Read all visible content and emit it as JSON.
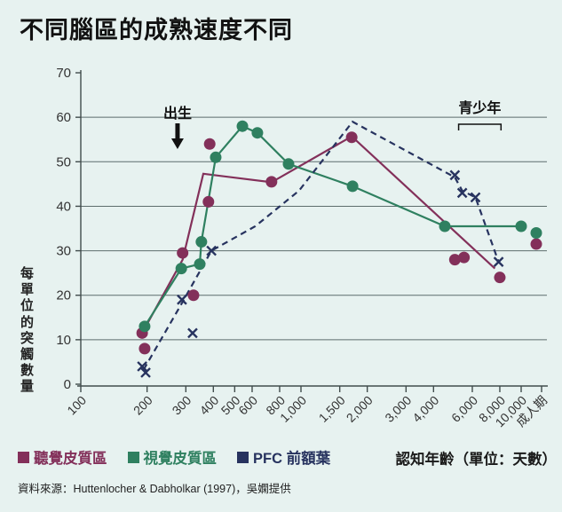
{
  "title": "不同腦區的成熟速度不同",
  "source": "資料來源：Huttenlocher & Dabholkar (1997)，吳嫻提供",
  "colors": {
    "background": "#e7f2f0",
    "grid": "#5d6d6d",
    "axis": "#414c4c",
    "text": "#1a1a1a",
    "annotation": "#111111"
  },
  "chart_data": {
    "type": "line",
    "title": "不同腦區的成熟速度不同",
    "x_axis": {
      "label": "認知年齡（單位：天數）",
      "scale": "log",
      "ticks": [
        {
          "label": "100",
          "day": 100
        },
        {
          "label": "200",
          "day": 200
        },
        {
          "label": "300",
          "day": 300
        },
        {
          "label": "400",
          "day": 400
        },
        {
          "label": "500",
          "day": 500
        },
        {
          "label": "600",
          "day": 600
        },
        {
          "label": "800",
          "day": 800
        },
        {
          "label": "1,000",
          "day": 1000
        },
        {
          "label": "1,500",
          "day": 1500
        },
        {
          "label": "2,000",
          "day": 2000
        },
        {
          "label": "3,000",
          "day": 3000
        },
        {
          "label": "4,000",
          "day": 4000
        },
        {
          "label": "6,000",
          "day": 6000
        },
        {
          "label": "8,000",
          "day": 8000
        },
        {
          "label": "10,000",
          "day": 10000
        },
        {
          "label": "成人期",
          "day": "adult"
        }
      ]
    },
    "y_axis": {
      "label": "每單位的突觸數量",
      "min": 0,
      "max": 70,
      "tick_step": 10,
      "tick_values": [
        0,
        10,
        20,
        30,
        40,
        50,
        60,
        70
      ],
      "gridlines": [
        10,
        20,
        30,
        40,
        50,
        60
      ]
    },
    "annotations": {
      "birth": {
        "label": "出生",
        "day": 275
      },
      "adolescence": {
        "label": "青少年",
        "day_start": 5200,
        "day_end": 8100
      }
    },
    "series": [
      {
        "id": "auditory",
        "name": "聽覺皮質區",
        "color": "#83305a",
        "marker": "circle",
        "line_style": "solid",
        "points": [
          [
            190,
            11.5
          ],
          [
            195,
            8
          ],
          [
            290,
            29.5
          ],
          [
            325,
            20
          ],
          [
            380,
            41
          ],
          [
            385,
            54
          ],
          [
            735,
            45.5
          ],
          [
            1700,
            55.5
          ],
          [
            5000,
            28
          ],
          [
            5500,
            28.5
          ],
          [
            8000,
            24
          ],
          [
            "adult",
            31.5
          ]
        ],
        "line": [
          [
            190,
            11.5
          ],
          [
            290,
            28
          ],
          [
            360,
            47.3
          ],
          [
            735,
            45.4
          ],
          [
            1700,
            55.7
          ],
          [
            7600,
            26
          ]
        ]
      },
      {
        "id": "visual",
        "name": "視覺皮質區",
        "color": "#2f8060",
        "marker": "circle",
        "line_style": "solid",
        "points": [
          [
            195,
            13
          ],
          [
            286,
            26
          ],
          [
            347,
            27
          ],
          [
            353,
            32
          ],
          [
            410,
            51
          ],
          [
            542,
            58
          ],
          [
            634,
            56.5
          ],
          [
            878,
            49.5
          ],
          [
            1715,
            44.5
          ],
          [
            4500,
            35.5
          ],
          [
            10000,
            35.5
          ],
          [
            "adult",
            34
          ]
        ],
        "line": [
          [
            195,
            13
          ],
          [
            286,
            26
          ],
          [
            347,
            27
          ],
          [
            353,
            32
          ],
          [
            410,
            51
          ],
          [
            542,
            58
          ],
          [
            634,
            56.5
          ],
          [
            878,
            49.5
          ],
          [
            1715,
            44.5
          ],
          [
            4500,
            35.5
          ],
          [
            10000,
            35.5
          ]
        ]
      },
      {
        "id": "pfc",
        "name": "PFC 前額葉",
        "color": "#27335f",
        "marker": "x",
        "line_style": "dashed",
        "points": [
          [
            190,
            4
          ],
          [
            197,
            2.6
          ],
          [
            288,
            19
          ],
          [
            322,
            11.5
          ],
          [
            392,
            30
          ],
          [
            5000,
            47
          ],
          [
            5400,
            43
          ],
          [
            6200,
            42
          ],
          [
            7900,
            27.5
          ]
        ],
        "line": [
          [
            193,
            3.3
          ],
          [
            290,
            18.5
          ],
          [
            392,
            30
          ],
          [
            620,
            35.5
          ],
          [
            980,
            43.5
          ],
          [
            1715,
            59
          ],
          [
            5000,
            46.5
          ],
          [
            5400,
            43.5
          ],
          [
            6200,
            42
          ],
          [
            7900,
            27.5
          ]
        ]
      }
    ]
  }
}
